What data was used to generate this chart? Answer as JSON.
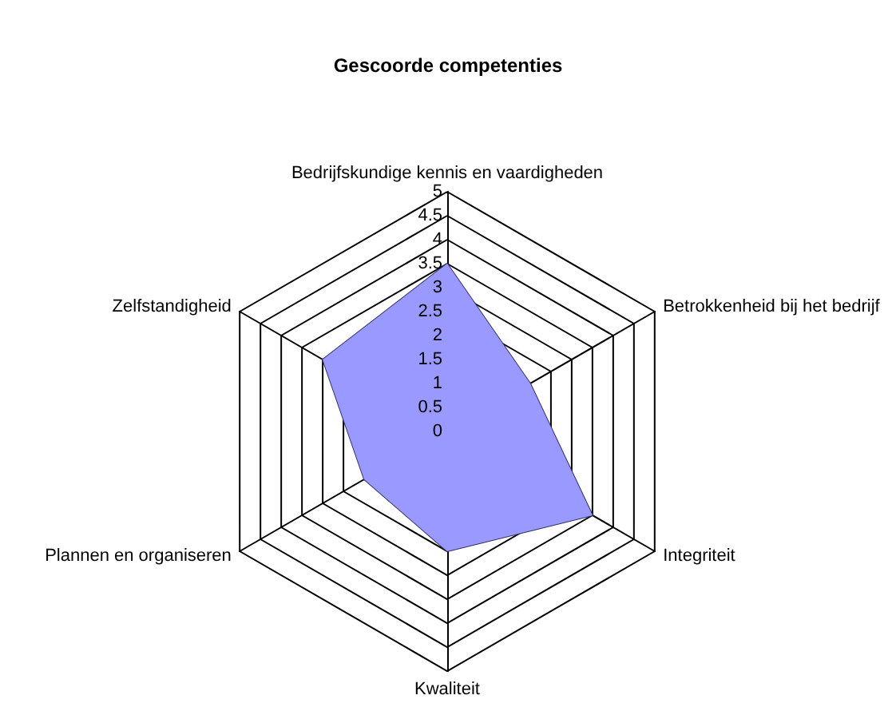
{
  "chart_data": {
    "type": "radar",
    "title": "Gescoorde competenties",
    "categories": [
      "Bedrijfskundige kennis en vaardigheden",
      "Betrokkenheid bij het bedrijf",
      "Integriteit",
      "Kwaliteit",
      "Plannen en organiseren",
      "Zelfstandigheid"
    ],
    "series": [
      {
        "color": "#9999ff",
        "values": [
          3.5,
          2,
          3.5,
          2.5,
          2,
          3
        ]
      }
    ],
    "ylim": [
      0,
      5
    ],
    "yticks": [
      0,
      0.5,
      1,
      1.5,
      2,
      2.5,
      3,
      3.5,
      4,
      4.5,
      5
    ],
    "grid": true,
    "marker": "none"
  }
}
